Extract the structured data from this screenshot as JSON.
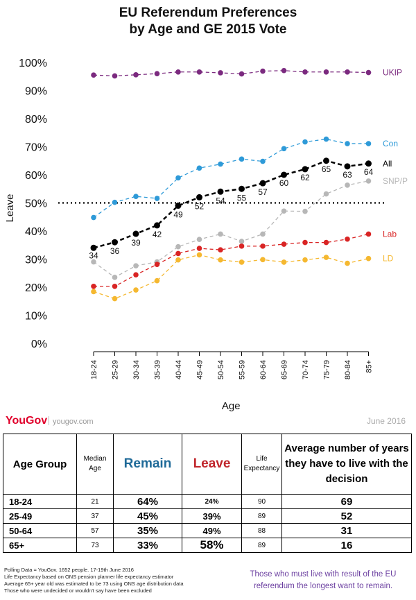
{
  "chart_data": {
    "type": "line",
    "title": "EU Referendum Preferences",
    "subtitle": "by Age and GE 2015 Vote",
    "xlabel": "Age",
    "ylabel": "Leave",
    "ylim": [
      0,
      100
    ],
    "yticks": [
      "0%",
      "10%",
      "20%",
      "30%",
      "40%",
      "50%",
      "60%",
      "70%",
      "80%",
      "90%",
      "100%"
    ],
    "categories": [
      "18-24",
      "25-29",
      "30-34",
      "35-39",
      "40-44",
      "45-49",
      "50-54",
      "55-59",
      "60-64",
      "65-69",
      "70-74",
      "75-79",
      "80-84",
      "85+"
    ],
    "reference_line": 50,
    "series": [
      {
        "name": "UKIP",
        "color": "#7b2a7f",
        "values": [
          95.5,
          95.2,
          95.6,
          96.0,
          96.6,
          96.6,
          96.3,
          95.9,
          96.9,
          97.1,
          96.6,
          96.6,
          96.6,
          96.4
        ]
      },
      {
        "name": "Con",
        "color": "#2e9ad8",
        "values": [
          44.8,
          50.2,
          52.3,
          51.6,
          58.9,
          62.4,
          63.8,
          65.6,
          64.8,
          69.3,
          71.7,
          72.7,
          71.1,
          71.1
        ]
      },
      {
        "name": "All",
        "color": "#000000",
        "values": [
          34,
          36,
          39,
          42,
          49,
          52,
          54,
          55,
          57,
          60,
          62,
          65,
          63,
          64
        ],
        "labels": [
          "34",
          "36",
          "39",
          "42",
          "49",
          "52",
          "54",
          "55",
          "57",
          "60",
          "62",
          "65",
          "63",
          "64"
        ]
      },
      {
        "name": "SNP/P",
        "color": "#b7b7b7",
        "values": [
          29.0,
          23.5,
          27.6,
          29.0,
          34.4,
          37.0,
          38.9,
          36.3,
          38.9,
          47.1,
          47.0,
          53.2,
          56.3,
          57.8
        ]
      },
      {
        "name": "Lab",
        "color": "#d92424",
        "values": [
          20.3,
          20.3,
          24.4,
          28.1,
          32.0,
          33.8,
          33.3,
          34.6,
          34.6,
          35.3,
          35.9,
          35.9,
          37.1,
          38.9
        ]
      },
      {
        "name": "LD",
        "color": "#f5b830",
        "values": [
          18.4,
          15.9,
          19.0,
          22.3,
          29.7,
          31.5,
          29.7,
          28.9,
          29.8,
          28.9,
          29.7,
          30.6,
          28.5,
          30.2
        ]
      }
    ]
  },
  "footer": {
    "brand": "YouGov",
    "url": "yougov.com",
    "date": "June 2016"
  },
  "table": {
    "headers": {
      "age_group": "Age Group",
      "median_age": "Median Age",
      "remain": "Remain",
      "leave": "Leave",
      "life_expectancy": "Life Expectancy",
      "avg_years": "Average number of years they have to live with the decision"
    },
    "rows": [
      {
        "age": "18-24",
        "median": "21",
        "remain": "64%",
        "leave": "24%",
        "life": "90",
        "years": "69"
      },
      {
        "age": "25-49",
        "median": "37",
        "remain": "45%",
        "leave": "39%",
        "life": "89",
        "years": "52"
      },
      {
        "age": "50-64",
        "median": "57",
        "remain": "35%",
        "leave": "49%",
        "life": "88",
        "years": "31"
      },
      {
        "age": "65+",
        "median": "73",
        "remain": "33%",
        "leave": "58%",
        "life": "89",
        "years": "16"
      }
    ]
  },
  "notes": [
    "Polling Data = YouGov. 1652 people. 17-19th June 2016",
    "Life Expectancy based on ONS pension planner life expectancy estimator",
    "Average 65+ year old was estimated to be 73 using ONS age distribution data",
    "Those who were undecided or wouldn't say have been excluded"
  ],
  "conclusion": "Those who must live with result of the EU referendum the longest want to remain."
}
